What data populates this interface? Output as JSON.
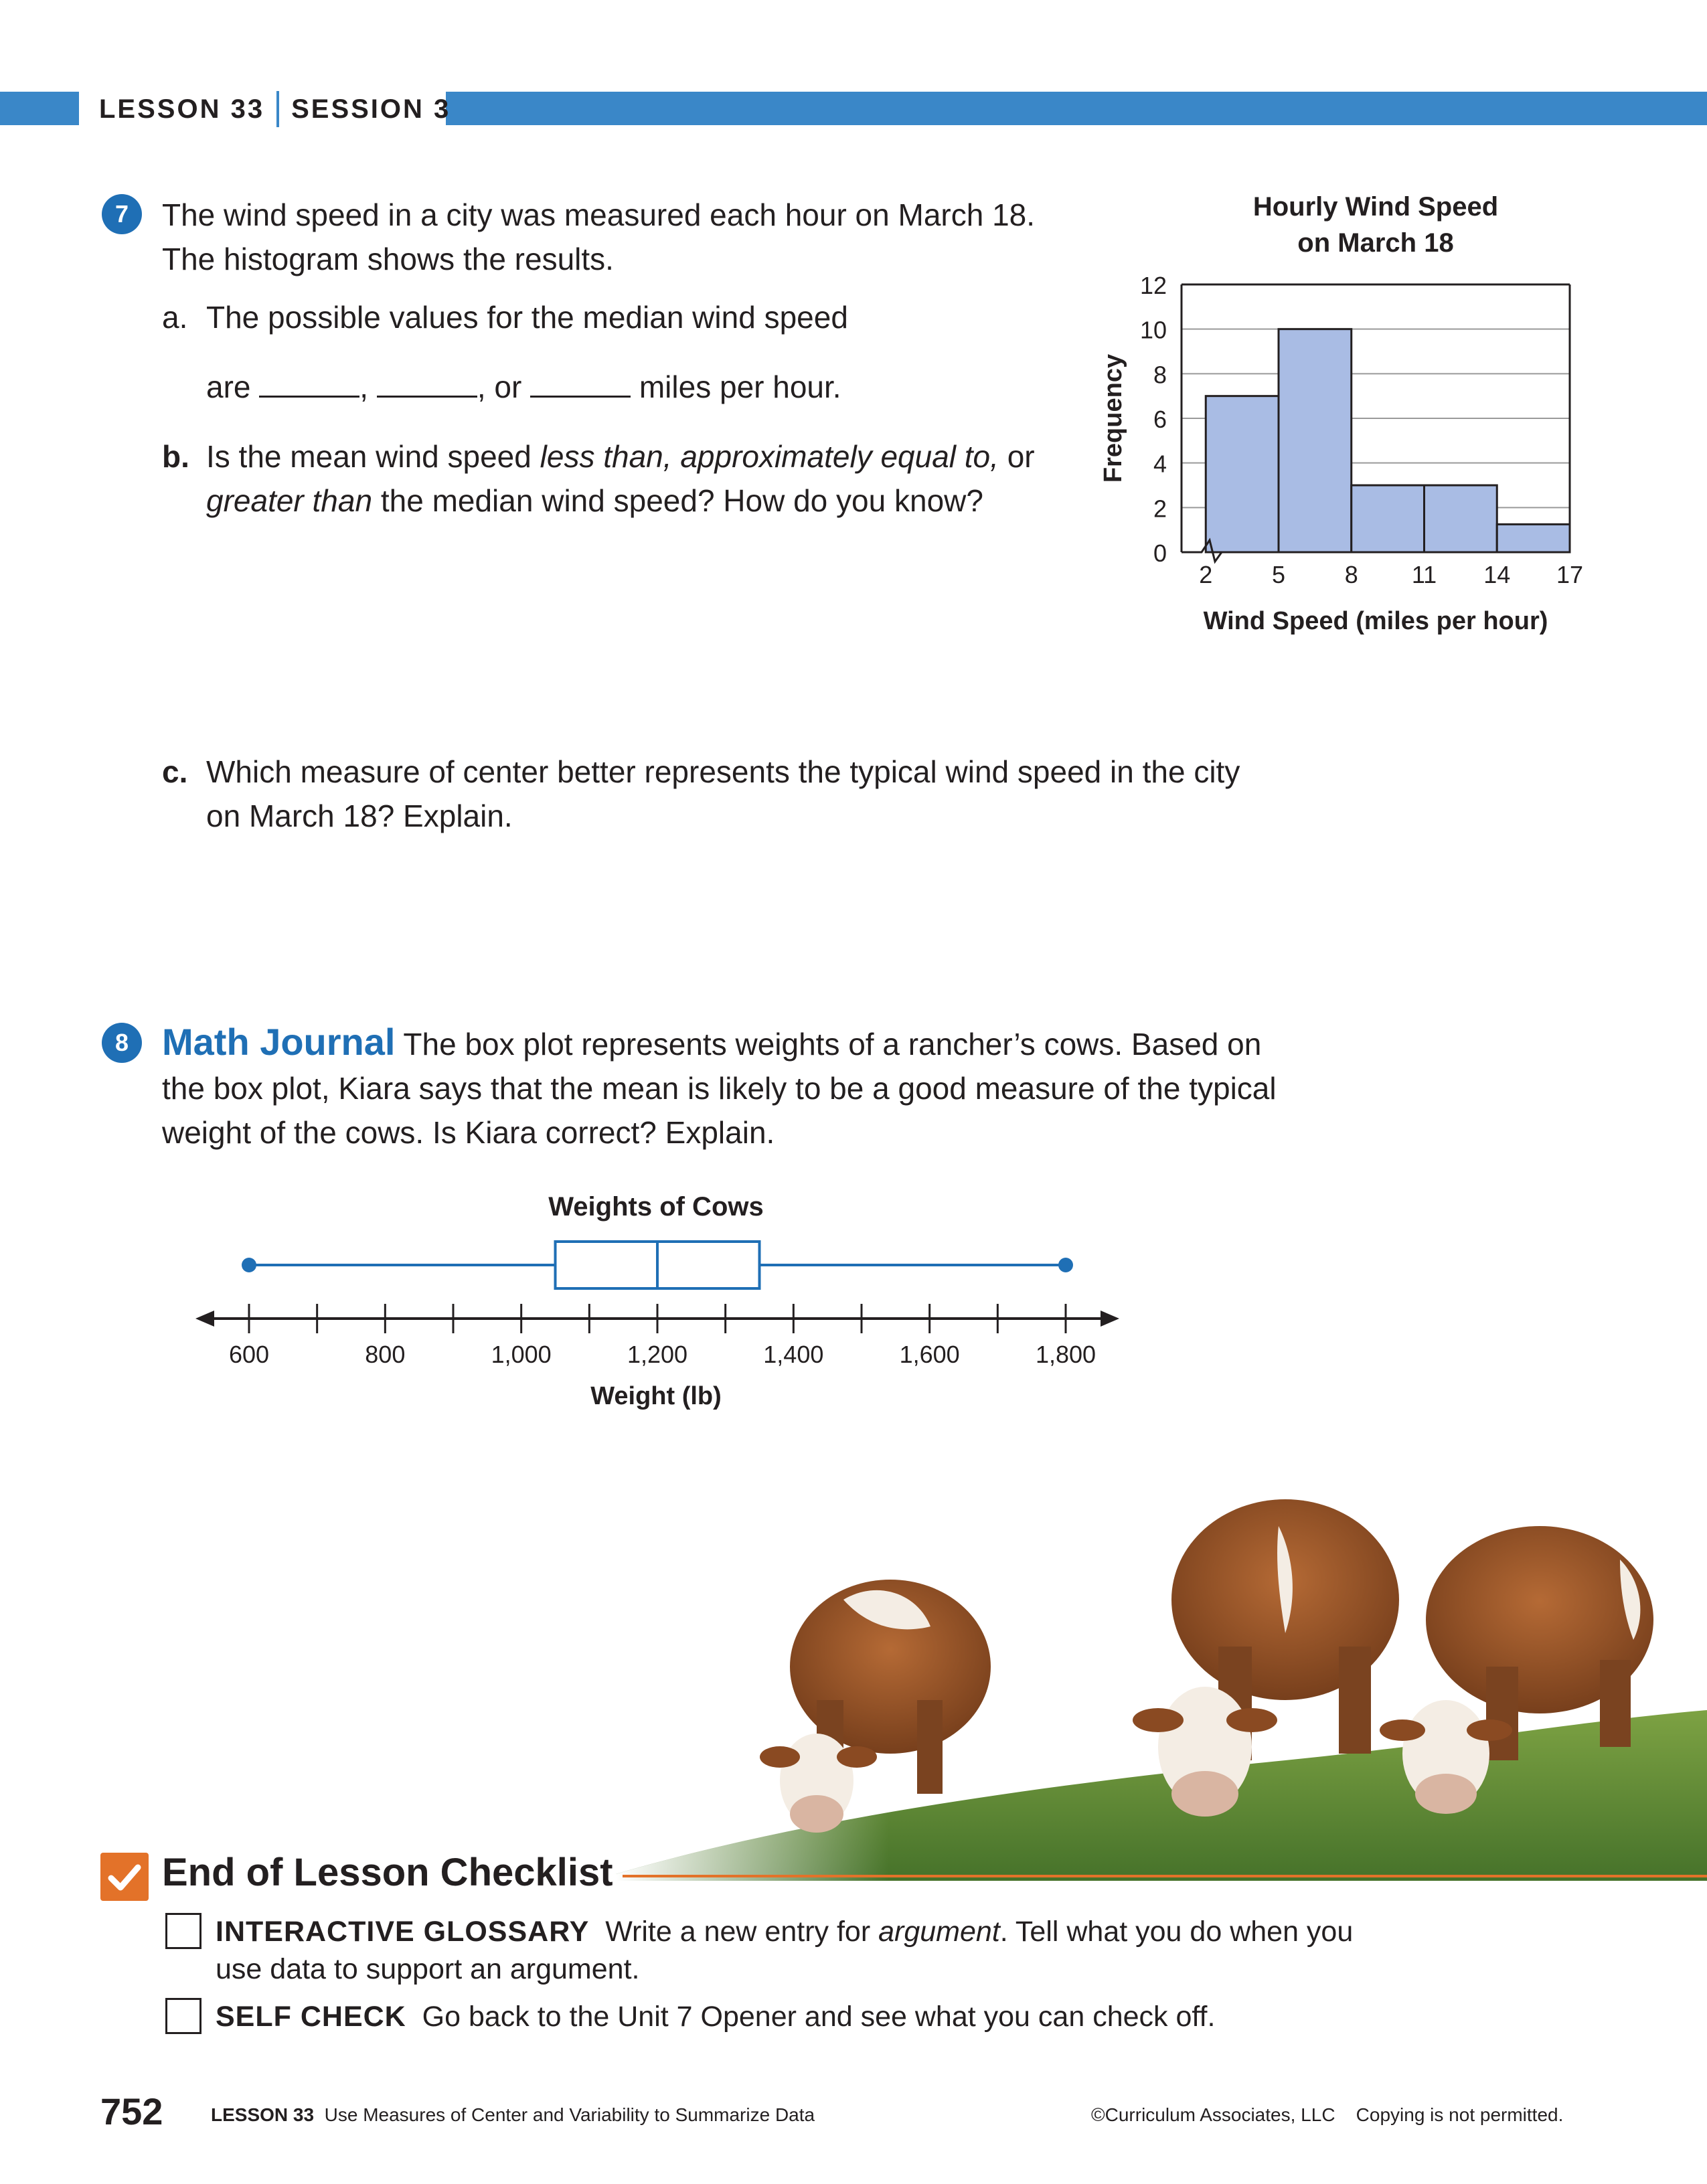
{
  "header": {
    "lesson": "LESSON 33",
    "session": "SESSION 3"
  },
  "q7": {
    "number": "7",
    "intro_line1": "The wind speed in a city was measured each hour on March 18.",
    "intro_line2": "The histogram shows the results.",
    "a_label": "a.",
    "a_line1": "The possible values for the median wind speed",
    "a_are": "are",
    "a_sep1": ",",
    "a_sep2": ", or",
    "a_end": "miles per hour.",
    "b_label": "b.",
    "b_line1_pre": "Is the mean wind speed ",
    "b_line1_em": "less than, approximately equal to,",
    "b_line1_post": " or",
    "b_line2_em": "greater than",
    "b_line2_post": " the median wind speed? How do you know?",
    "c_label": "c.",
    "c_line1": "Which measure of center better represents the typical wind speed in the city",
    "c_line2": "on March 18? Explain."
  },
  "q8": {
    "number": "8",
    "journal_title": "Math Journal",
    "line1": "The box plot represents weights of a rancher’s cows. Based on",
    "line2": "the box plot, Kiara says that the mean is likely to be a good measure of the typical",
    "line3": "weight of the cows. Is Kiara correct? Explain."
  },
  "chart_data": [
    {
      "type": "histogram",
      "title_line1": "Hourly Wind Speed",
      "title_line2": "on March 18",
      "xlabel": "Wind Speed (miles per hour)",
      "ylabel": "Frequency",
      "bin_edges": [
        2,
        5,
        8,
        11,
        14,
        17
      ],
      "x_tick_labels": [
        "2",
        "5",
        "8",
        "11",
        "14",
        "17"
      ],
      "frequencies": [
        7,
        10,
        3,
        3,
        1.25
      ],
      "ylim": [
        0,
        12
      ],
      "y_ticks": [
        0,
        2,
        4,
        6,
        8,
        10,
        12
      ],
      "y_tick_labels": [
        "0",
        "2",
        "4",
        "6",
        "8",
        "10",
        "12"
      ],
      "grid": true,
      "bar_color": "#a9bce4",
      "axis_break": true
    },
    {
      "type": "box_plot",
      "title": "Weights of Cows",
      "xlabel": "Weight (lb)",
      "min": 600,
      "q1": 1050,
      "median": 1200,
      "q3": 1350,
      "max": 1800,
      "axis_range": [
        600,
        1800
      ],
      "major_ticks": [
        600,
        800,
        1000,
        1200,
        1400,
        1600,
        1800
      ],
      "minor_ticks": [
        700,
        900,
        1100,
        1300,
        1500,
        1700
      ],
      "tick_labels": [
        "600",
        "800",
        "1,000",
        "1,200",
        "1,400",
        "1,600",
        "1,800"
      ],
      "color": "#1f6fb5"
    }
  ],
  "checklist": {
    "title": "End of Lesson Checklist",
    "items": [
      {
        "tag": "INTERACTIVE GLOSSARY",
        "text_pre": "Write a new entry for ",
        "text_em": "argument",
        "text_post": ". Tell what you do when you",
        "text_line2": "use data to support an argument."
      },
      {
        "tag": "SELF CHECK",
        "text": "Go back to the Unit 7 Opener and see what you can check off."
      }
    ]
  },
  "footer": {
    "page_number": "752",
    "lesson": "LESSON 33",
    "lesson_title": "Use Measures of Center and Variability to Summarize Data",
    "copyright": "©Curriculum Associates, LLC",
    "notice": "Copying is not permitted."
  },
  "colors": {
    "accent_blue": "#3a87c8",
    "number_blue": "#1f6fb5",
    "checklist_orange": "#e37229"
  }
}
